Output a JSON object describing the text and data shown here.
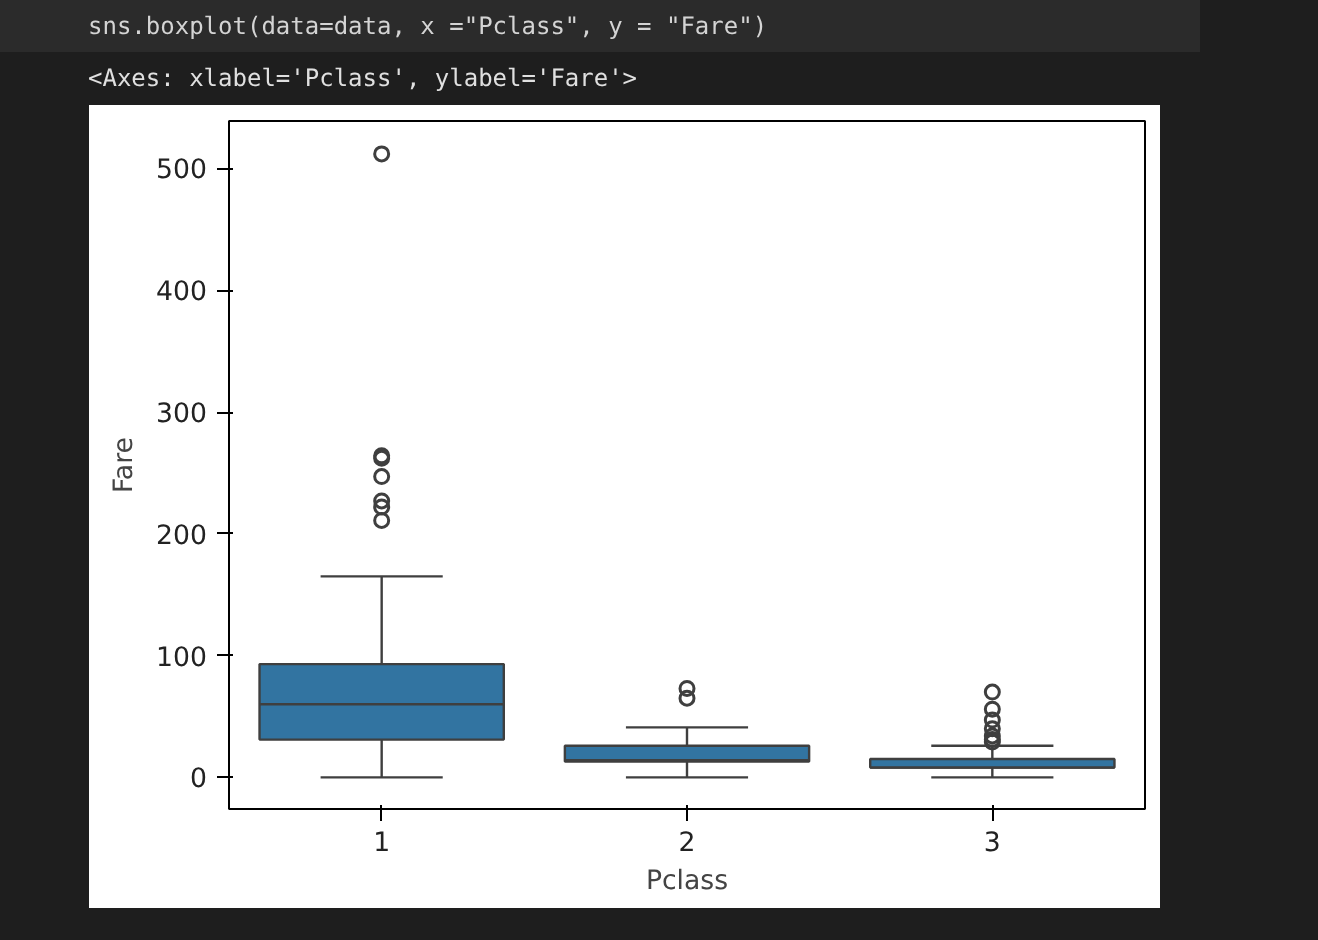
{
  "chart_data": {
    "type": "box",
    "xlabel": "Pclass",
    "ylabel": "Fare",
    "categories": [
      "1",
      "2",
      "3"
    ],
    "annotations": [
      "sns.boxplot(data=data, x  =\"Pclass\", y = \"Fare\")",
      "<Axes: xlabel='Pclass', ylabel='Fare'>"
    ],
    "color": "#3274a1",
    "boxes": [
      {
        "low": 0,
        "q1": 31,
        "median": 60,
        "q3": 93,
        "high": 165,
        "outliers": [
          211,
          222,
          227,
          247,
          262,
          264,
          512
        ]
      },
      {
        "low": 0,
        "q1": 13,
        "median": 14,
        "q3": 26,
        "high": 41,
        "outliers": [
          65,
          73
        ]
      },
      {
        "low": 0,
        "q1": 8,
        "median": 8,
        "q3": 15,
        "high": 26,
        "outliers": [
          29,
          31,
          34,
          40,
          47,
          56,
          70
        ]
      }
    ],
    "ylim": [
      -26,
      539
    ],
    "yticks": [
      0,
      100,
      200,
      300,
      400,
      500
    ],
    "grid": false
  }
}
